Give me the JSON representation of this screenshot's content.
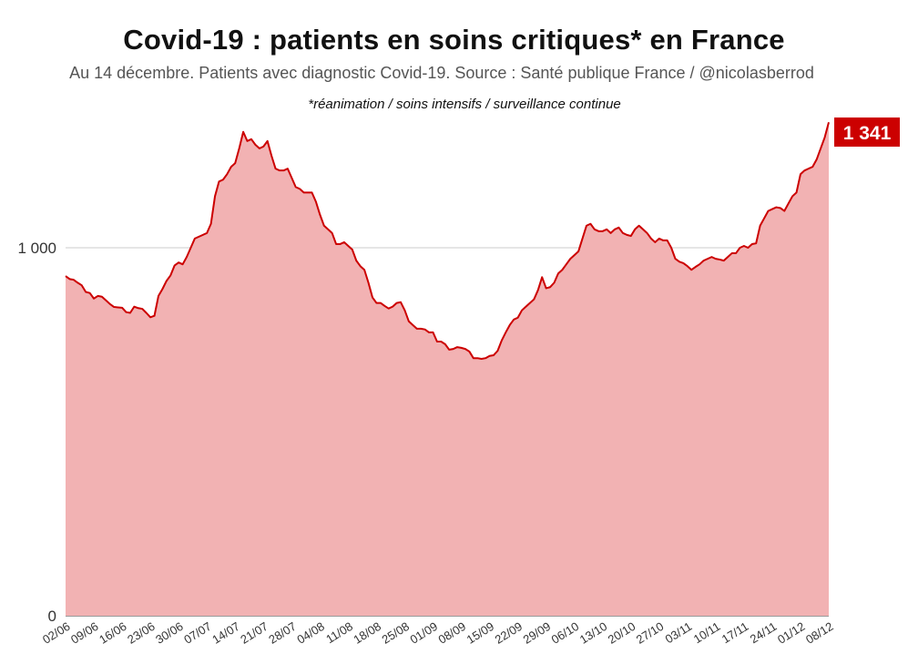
{
  "chart_data": {
    "type": "area",
    "title": "Covid-19 : patients en soins critiques* en France",
    "subtitle": "Au 14 décembre. Patients avec diagnostic Covid-19. Source : Santé publique France / @nicolasberrod",
    "note": "*réanimation / soins intensifs / surveillance continue",
    "xlabel": "",
    "ylabel": "",
    "ylim": [
      0,
      1341
    ],
    "yticks": [
      0,
      1000
    ],
    "ytick_labels": [
      "0",
      "1 000"
    ],
    "grid": true,
    "start_date": "02/06",
    "end_date": "14/12",
    "x_tick_labels": [
      "02/06",
      "09/06",
      "16/06",
      "23/06",
      "30/06",
      "07/07",
      "14/07",
      "21/07",
      "28/07",
      "04/08",
      "11/08",
      "18/08",
      "25/08",
      "01/09",
      "08/09",
      "15/09",
      "22/09",
      "29/09",
      "06/10",
      "13/10",
      "20/10",
      "27/10",
      "03/11",
      "10/11",
      "17/11",
      "24/11",
      "01/12",
      "08/12"
    ],
    "colors": {
      "line": "#cc0000",
      "fill": "#f2b2b3",
      "label_bg": "#cc0000"
    },
    "last_value_label": "1 341",
    "series": [
      {
        "values": [
          923,
          915,
          913,
          905,
          898,
          880,
          877,
          862,
          869,
          867,
          857,
          847,
          839,
          838,
          837,
          825,
          823,
          840,
          836,
          834,
          823,
          811,
          815,
          869,
          888,
          910,
          925,
          952,
          960,
          955,
          975,
          1000,
          1025,
          1030,
          1035,
          1040,
          1065,
          1140,
          1180,
          1185,
          1200,
          1220,
          1230,
          1270,
          1315,
          1290,
          1295,
          1280,
          1270,
          1275,
          1290,
          1250,
          1215,
          1210,
          1210,
          1215,
          1190,
          1165,
          1160,
          1150,
          1150,
          1150,
          1125,
          1090,
          1060,
          1050,
          1040,
          1010,
          1010,
          1015,
          1005,
          995,
          965,
          950,
          940,
          905,
          865,
          850,
          850,
          842,
          835,
          840,
          850,
          852,
          830,
          800,
          790,
          780,
          780,
          778,
          770,
          770,
          745,
          745,
          738,
          723,
          725,
          730,
          728,
          725,
          718,
          700,
          700,
          698,
          700,
          706,
          708,
          720,
          748,
          770,
          790,
          805,
          810,
          830,
          840,
          850,
          860,
          885,
          920,
          890,
          893,
          905,
          930,
          940,
          955,
          970,
          980,
          990,
          1025,
          1060,
          1065,
          1050,
          1045,
          1045,
          1050,
          1040,
          1050,
          1055,
          1040,
          1035,
          1032,
          1050,
          1060,
          1050,
          1040,
          1025,
          1015,
          1025,
          1020,
          1020,
          1000,
          970,
          962,
          958,
          950,
          940,
          948,
          955,
          965,
          970,
          975,
          970,
          968,
          965,
          975,
          985,
          985,
          1000,
          1005,
          1000,
          1010,
          1012,
          1060,
          1080,
          1100,
          1105,
          1110,
          1108,
          1100,
          1120,
          1140,
          1150,
          1200,
          1210,
          1215,
          1220,
          1240,
          1270,
          1300,
          1341
        ]
      }
    ]
  }
}
